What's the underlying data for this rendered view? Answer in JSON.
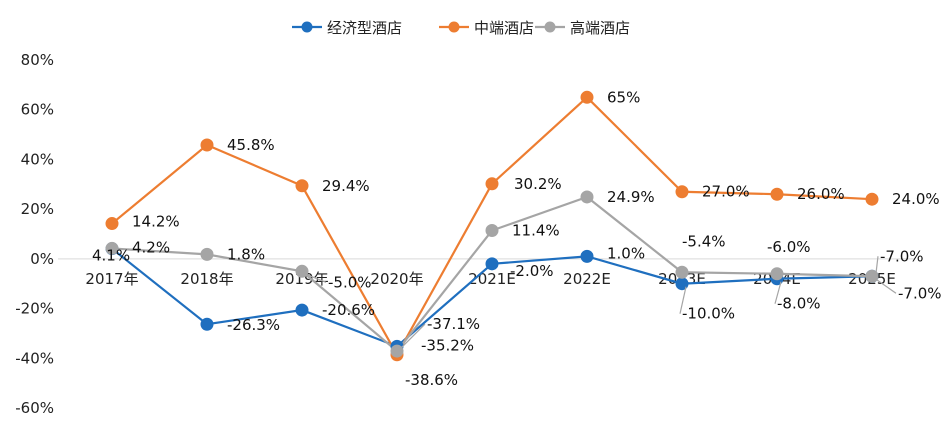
{
  "chart_data": {
    "type": "line",
    "categories": [
      "2017年",
      "2018年",
      "2019年",
      "2020年",
      "2021E",
      "2022E",
      "2023E",
      "2024E",
      "2025E"
    ],
    "ylim": [
      -60,
      80
    ],
    "yticks": [
      -60,
      -40,
      -20,
      0,
      20,
      40,
      60,
      80
    ],
    "ytick_labels": [
      "-60%",
      "-40%",
      "-20%",
      "0%",
      "20%",
      "40%",
      "60%",
      "80%"
    ],
    "grid": false,
    "legend_position": "top-center",
    "series": [
      {
        "name": "经济型酒店",
        "color": "#1f6fbf",
        "values": [
          4.1,
          -26.3,
          -20.6,
          -35.2,
          -2.0,
          1.0,
          -10.0,
          -8.0,
          -7.0
        ],
        "labels": [
          "4.1%",
          "-26.3%",
          "-20.6%",
          "-35.2%",
          "-2.0%",
          "1.0%",
          "-10.0%",
          "-8.0%",
          "-7.0%"
        ]
      },
      {
        "name": "中端酒店",
        "color": "#ed7d31",
        "values": [
          14.2,
          45.8,
          29.4,
          -38.6,
          30.2,
          65,
          27.0,
          26.0,
          24.0
        ],
        "labels": [
          "14.2%",
          "45.8%",
          "29.4%",
          "-38.6%",
          "30.2%",
          "65%",
          "27.0%",
          "26.0%",
          "24.0%"
        ]
      },
      {
        "name": "高端酒店",
        "color": "#a5a5a5",
        "values": [
          4.2,
          1.8,
          -5.0,
          -37.1,
          11.4,
          24.9,
          -5.4,
          -6.0,
          -7.0
        ],
        "labels": [
          "4.2%",
          "1.8%",
          "-5.0%",
          "-37.1%",
          "11.4%",
          "24.9%",
          "-5.4%",
          "-6.0%",
          "-7.0%"
        ]
      }
    ]
  }
}
